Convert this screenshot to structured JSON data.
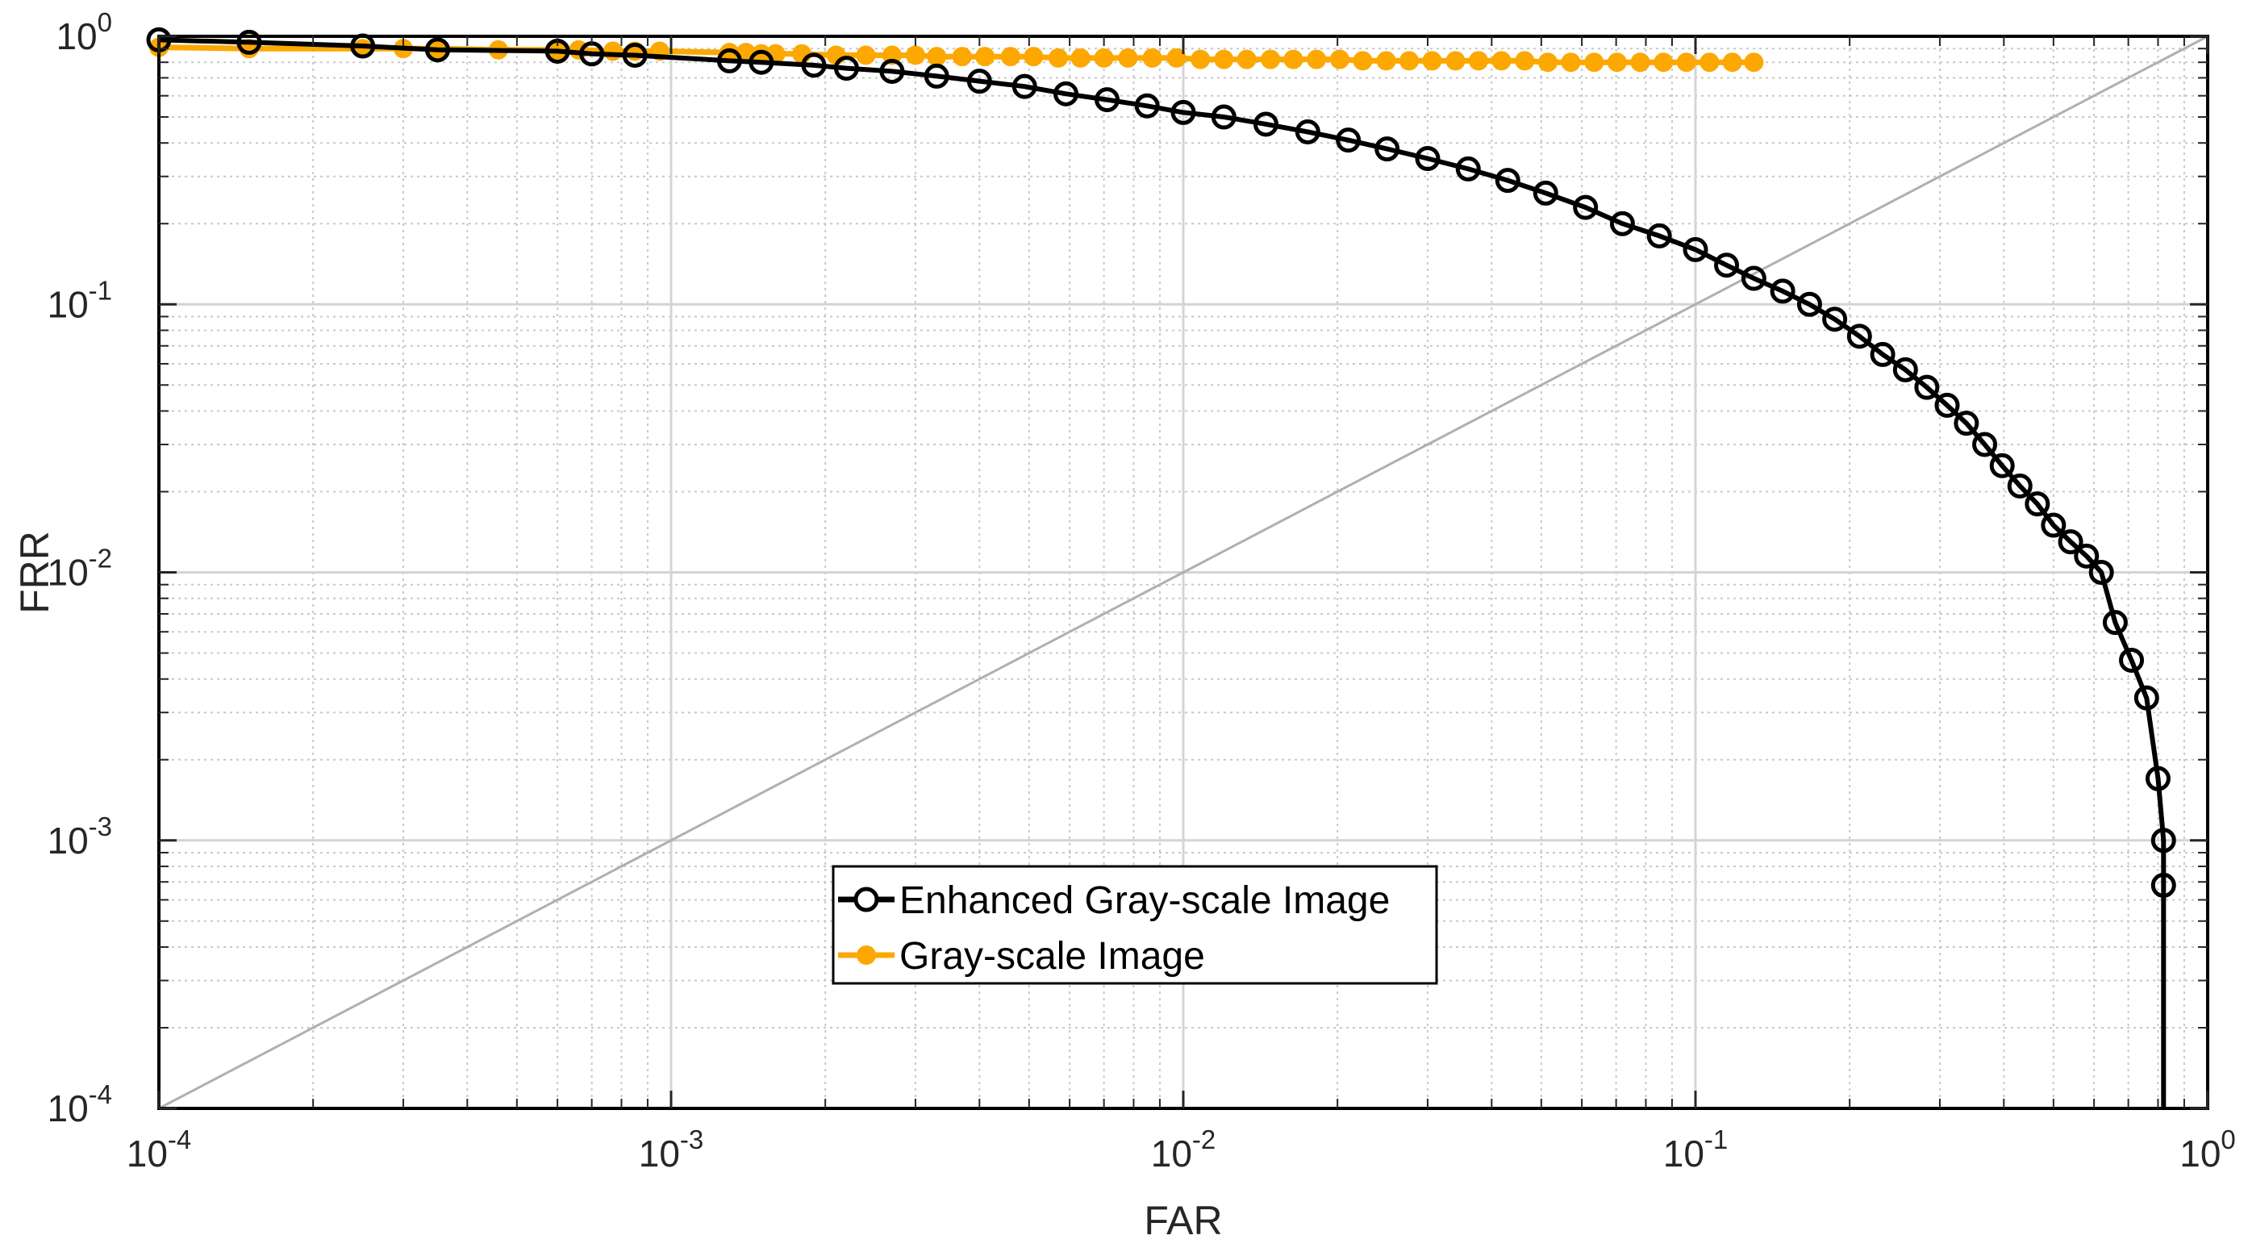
{
  "chart_data": {
    "type": "line",
    "title": "",
    "xlabel": "FAR",
    "ylabel": "FRR",
    "xscale": "log",
    "yscale": "log",
    "xlim": [
      0.0001,
      1
    ],
    "ylim": [
      0.0001,
      1
    ],
    "grid": true,
    "minor_grid": true,
    "legend_position": "bottom-center",
    "x_ticks": [
      {
        "value": 0.0001,
        "base": "10",
        "exp": "-4"
      },
      {
        "value": 0.001,
        "base": "10",
        "exp": "-3"
      },
      {
        "value": 0.01,
        "base": "10",
        "exp": "-2"
      },
      {
        "value": 0.1,
        "base": "10",
        "exp": "-1"
      },
      {
        "value": 1,
        "base": "10",
        "exp": "0"
      }
    ],
    "y_ticks": [
      {
        "value": 0.0001,
        "base": "10",
        "exp": "-4"
      },
      {
        "value": 0.001,
        "base": "10",
        "exp": "-3"
      },
      {
        "value": 0.01,
        "base": "10",
        "exp": "-2"
      },
      {
        "value": 0.1,
        "base": "10",
        "exp": "-1"
      },
      {
        "value": 1,
        "base": "10",
        "exp": "0"
      }
    ],
    "reference_line": {
      "x": [
        0.0001,
        1
      ],
      "y": [
        0.0001,
        1
      ],
      "color": "#b0b0b0"
    },
    "series": [
      {
        "name": "Enhanced Gray-scale Image",
        "color": "#000000",
        "marker": "open-circle",
        "x": [
          0.0001,
          0.00015,
          0.00025,
          0.00035,
          0.0006,
          0.0007,
          0.00085,
          0.0013,
          0.0015,
          0.0019,
          0.0022,
          0.0027,
          0.0033,
          0.004,
          0.0049,
          0.0059,
          0.0071,
          0.0085,
          0.01,
          0.012,
          0.0145,
          0.0175,
          0.021,
          0.025,
          0.03,
          0.036,
          0.043,
          0.051,
          0.061,
          0.072,
          0.085,
          0.1,
          0.115,
          0.13,
          0.148,
          0.167,
          0.187,
          0.209,
          0.232,
          0.257,
          0.283,
          0.31,
          0.338,
          0.367,
          0.397,
          0.43,
          0.465,
          0.5,
          0.54,
          0.58,
          0.62,
          0.66,
          0.71,
          0.76,
          0.8,
          0.82,
          0.82
        ],
        "y": [
          0.97,
          0.95,
          0.92,
          0.89,
          0.88,
          0.86,
          0.85,
          0.81,
          0.8,
          0.78,
          0.76,
          0.74,
          0.71,
          0.68,
          0.65,
          0.61,
          0.58,
          0.55,
          0.52,
          0.5,
          0.47,
          0.44,
          0.41,
          0.38,
          0.35,
          0.32,
          0.29,
          0.26,
          0.23,
          0.2,
          0.18,
          0.16,
          0.14,
          0.125,
          0.112,
          0.1,
          0.088,
          0.076,
          0.065,
          0.057,
          0.049,
          0.042,
          0.036,
          0.03,
          0.025,
          0.021,
          0.018,
          0.015,
          0.013,
          0.0115,
          0.01,
          0.0065,
          0.0047,
          0.0034,
          0.0017,
          0.001,
          0.00068
        ]
      },
      {
        "name": "Gray-scale Image",
        "color": "#fca800",
        "marker": "filled-circle",
        "x": [
          0.0001,
          0.00015,
          0.00025,
          0.0003,
          0.00035,
          0.00046,
          0.0006,
          0.00066,
          0.00077,
          0.00085,
          0.00095,
          0.0013,
          0.0014,
          0.0015,
          0.0016,
          0.0018,
          0.0021,
          0.0024,
          0.0027,
          0.003,
          0.0033,
          0.0037,
          0.0041,
          0.0046,
          0.0051,
          0.0057,
          0.0063,
          0.007,
          0.0078,
          0.0087,
          0.0097,
          0.0108,
          0.012,
          0.0133,
          0.0148,
          0.0164,
          0.0182,
          0.0202,
          0.0224,
          0.0249,
          0.0276,
          0.0306,
          0.034,
          0.0377,
          0.0418,
          0.0464,
          0.0515,
          0.0571,
          0.0634,
          0.0703,
          0.078,
          0.0866,
          0.096,
          0.1065,
          0.118,
          0.13
        ],
        "y": [
          0.91,
          0.9,
          0.9,
          0.9,
          0.9,
          0.89,
          0.89,
          0.89,
          0.88,
          0.88,
          0.88,
          0.87,
          0.87,
          0.86,
          0.86,
          0.86,
          0.85,
          0.85,
          0.85,
          0.85,
          0.84,
          0.84,
          0.84,
          0.84,
          0.84,
          0.83,
          0.83,
          0.83,
          0.83,
          0.83,
          0.83,
          0.82,
          0.82,
          0.82,
          0.82,
          0.82,
          0.82,
          0.82,
          0.81,
          0.81,
          0.81,
          0.81,
          0.81,
          0.81,
          0.81,
          0.81,
          0.8,
          0.8,
          0.8,
          0.8,
          0.8,
          0.8,
          0.8,
          0.8,
          0.8,
          0.8
        ]
      }
    ]
  }
}
